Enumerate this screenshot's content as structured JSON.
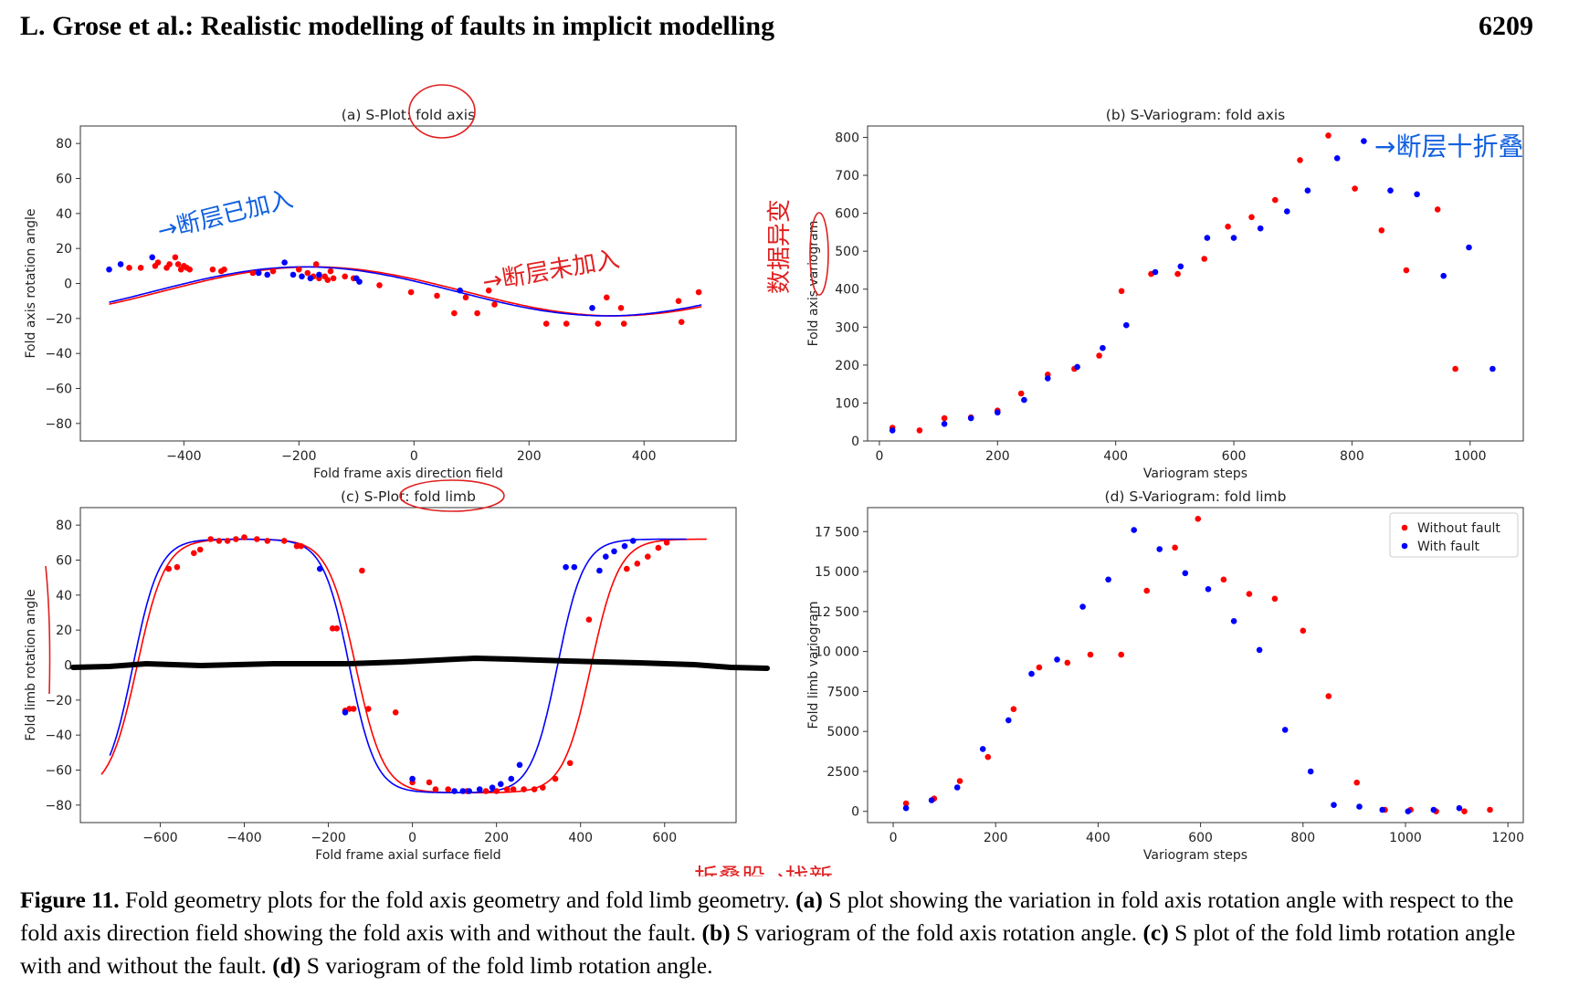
{
  "header": {
    "left": "L. Grose et al.: Realistic modelling of faults in implicit modelling",
    "right": "6209"
  },
  "caption": {
    "label": "Figure 11.",
    "intro": " Fold geometry plots for the fold axis geometry and fold limb geometry. ",
    "a_label": "(a)",
    "a_text": " S plot showing the variation in fold axis rotation angle with respect to the fold axis direction field showing the fold axis with and without the fault. ",
    "b_label": "(b)",
    "b_text": " S variogram of the fold axis rotation angle. ",
    "c_label": "(c)",
    "c_text": " S plot of the fold limb rotation angle with and without the fault. ",
    "d_label": "(d)",
    "d_text": " S variogram of the fold limb rotation angle."
  },
  "annotations": {
    "a_fault_added": "→断层已加入",
    "a_fault_not_added": "→断层未加入",
    "b_fault_annot": "→断层十折叠",
    "b_ylabel_annot": "数据异变",
    "caption_annot": "折叠股→找新"
  },
  "colors": {
    "without_fault": "#ff0000",
    "with_fault": "#0000ff",
    "ink_red": "#e02020",
    "ink_blue": "#1060e0"
  },
  "chart_data": [
    {
      "type": "scatter",
      "title": "(a) S-Plot: fold axis",
      "xlabel": "Fold frame axis direction field",
      "ylabel": "Fold axis rotation angle",
      "xlim": [
        -580,
        560
      ],
      "ylim": [
        -90,
        90
      ],
      "xticks": [
        -400,
        -200,
        0,
        200,
        400
      ],
      "yticks": [
        -80,
        -60,
        -40,
        -20,
        0,
        20,
        40,
        60,
        80
      ],
      "series": [
        {
          "name": "Without fault",
          "color": "#ff0000",
          "points": [
            [
              -495,
              9
            ],
            [
              -475,
              9
            ],
            [
              -450,
              10
            ],
            [
              -445,
              12
            ],
            [
              -430,
              9
            ],
            [
              -425,
              11
            ],
            [
              -415,
              15
            ],
            [
              -410,
              11
            ],
            [
              -405,
              8
            ],
            [
              -400,
              10
            ],
            [
              -395,
              9
            ],
            [
              -390,
              8
            ],
            [
              -350,
              8
            ],
            [
              -335,
              7
            ],
            [
              -330,
              8
            ],
            [
              -280,
              6
            ],
            [
              -245,
              7
            ],
            [
              -200,
              8
            ],
            [
              -185,
              6
            ],
            [
              -175,
              4
            ],
            [
              -170,
              11
            ],
            [
              -165,
              3
            ],
            [
              -155,
              4
            ],
            [
              -150,
              2
            ],
            [
              -145,
              7
            ],
            [
              -140,
              3
            ],
            [
              -120,
              4
            ],
            [
              -105,
              3
            ],
            [
              -60,
              -1
            ],
            [
              -5,
              -5
            ],
            [
              40,
              -7
            ],
            [
              70,
              -17
            ],
            [
              90,
              -8
            ],
            [
              110,
              -17
            ],
            [
              130,
              -4
            ],
            [
              140,
              -12
            ],
            [
              230,
              -23
            ],
            [
              265,
              -23
            ],
            [
              320,
              -23
            ],
            [
              335,
              -8
            ],
            [
              360,
              -14
            ],
            [
              365,
              -23
            ],
            [
              460,
              -10
            ],
            [
              465,
              -22
            ],
            [
              495,
              -5
            ]
          ]
        },
        {
          "name": "With fault",
          "color": "#0000ff",
          "points": [
            [
              -530,
              8
            ],
            [
              -510,
              11
            ],
            [
              -455,
              15
            ],
            [
              -270,
              6
            ],
            [
              -255,
              5
            ],
            [
              -225,
              12
            ],
            [
              -210,
              5
            ],
            [
              -195,
              4
            ],
            [
              -180,
              3
            ],
            [
              -165,
              5
            ],
            [
              -100,
              3
            ],
            [
              -95,
              1
            ],
            [
              80,
              -4
            ],
            [
              310,
              -14
            ]
          ]
        }
      ],
      "lines": [
        {
          "name": "Without fault",
          "color": "#ff0000",
          "amplitude": 14,
          "offset": -4.5,
          "center": -175,
          "wavelength": 1050
        },
        {
          "name": "With fault",
          "color": "#0000ff",
          "amplitude": 14,
          "offset": -4.5,
          "center": -190,
          "wavelength": 1050
        }
      ]
    },
    {
      "type": "scatter",
      "title": "(b) S-Variogram: fold axis",
      "xlabel": "Variogram steps",
      "ylabel": "Fold axis variogram",
      "xlim": [
        -20,
        1090
      ],
      "ylim": [
        0,
        830
      ],
      "xticks": [
        0,
        200,
        400,
        600,
        800,
        1000
      ],
      "yticks": [
        0,
        100,
        200,
        300,
        400,
        500,
        600,
        700,
        800
      ],
      "series": [
        {
          "name": "Without fault",
          "color": "#ff0000",
          "points": [
            [
              22,
              35
            ],
            [
              68,
              28
            ],
            [
              110,
              60
            ],
            [
              155,
              62
            ],
            [
              200,
              80
            ],
            [
              240,
              125
            ],
            [
              285,
              175
            ],
            [
              330,
              190
            ],
            [
              372,
              225
            ],
            [
              410,
              395
            ],
            [
              460,
              440
            ],
            [
              505,
              440
            ],
            [
              550,
              480
            ],
            [
              590,
              565
            ],
            [
              630,
              590
            ],
            [
              670,
              635
            ],
            [
              712,
              740
            ],
            [
              760,
              805
            ],
            [
              805,
              665
            ],
            [
              850,
              555
            ],
            [
              892,
              450
            ],
            [
              945,
              610
            ],
            [
              975,
              190
            ]
          ]
        },
        {
          "name": "With fault",
          "color": "#0000ff",
          "points": [
            [
              22,
              28
            ],
            [
              110,
              45
            ],
            [
              155,
              60
            ],
            [
              200,
              75
            ],
            [
              245,
              108
            ],
            [
              285,
              165
            ],
            [
              335,
              195
            ],
            [
              378,
              245
            ],
            [
              418,
              305
            ],
            [
              467,
              445
            ],
            [
              510,
              460
            ],
            [
              555,
              535
            ],
            [
              600,
              535
            ],
            [
              645,
              560
            ],
            [
              690,
              605
            ],
            [
              725,
              660
            ],
            [
              775,
              745
            ],
            [
              820,
              790
            ],
            [
              865,
              660
            ],
            [
              910,
              650
            ],
            [
              955,
              435
            ],
            [
              998,
              510
            ],
            [
              1038,
              190
            ]
          ]
        }
      ]
    },
    {
      "type": "scatter",
      "title": "(c) S-Plot: fold limb",
      "xlabel": "Fold frame axial surface field",
      "ylabel": "Fold limb rotation angle",
      "xlim": [
        -790,
        770
      ],
      "ylim": [
        -90,
        90
      ],
      "xticks": [
        -600,
        -400,
        -200,
        0,
        200,
        400,
        600
      ],
      "yticks": [
        -80,
        -60,
        -40,
        -20,
        0,
        20,
        40,
        60,
        80
      ],
      "series": [
        {
          "name": "Without fault",
          "color": "#ff0000",
          "points": [
            [
              -580,
              55
            ],
            [
              -560,
              56
            ],
            [
              -520,
              64
            ],
            [
              -505,
              66
            ],
            [
              -480,
              72
            ],
            [
              -460,
              71
            ],
            [
              -440,
              71
            ],
            [
              -420,
              72
            ],
            [
              -400,
              73
            ],
            [
              -370,
              72
            ],
            [
              -345,
              71
            ],
            [
              -305,
              71
            ],
            [
              -275,
              68
            ],
            [
              -265,
              68
            ],
            [
              -190,
              21
            ],
            [
              -180,
              21
            ],
            [
              -160,
              -26
            ],
            [
              -150,
              -25
            ],
            [
              -140,
              -25
            ],
            [
              -120,
              54
            ],
            [
              -105,
              -25
            ],
            [
              -40,
              -27
            ],
            [
              0,
              -67
            ],
            [
              40,
              -67
            ],
            [
              55,
              -71
            ],
            [
              85,
              -71
            ],
            [
              130,
              -72
            ],
            [
              175,
              -72
            ],
            [
              200,
              -72
            ],
            [
              225,
              -71
            ],
            [
              240,
              -71
            ],
            [
              265,
              -71
            ],
            [
              290,
              -71
            ],
            [
              310,
              -70
            ],
            [
              340,
              -65
            ],
            [
              375,
              -56
            ],
            [
              420,
              26
            ],
            [
              510,
              55
            ],
            [
              535,
              58
            ],
            [
              560,
              62
            ],
            [
              585,
              67
            ],
            [
              605,
              70
            ]
          ]
        },
        {
          "name": "With fault",
          "color": "#0000ff",
          "points": [
            [
              -220,
              55
            ],
            [
              -160,
              -27
            ],
            [
              0,
              -65
            ],
            [
              100,
              -72
            ],
            [
              120,
              -72
            ],
            [
              135,
              -72
            ],
            [
              160,
              -71
            ],
            [
              190,
              -70
            ],
            [
              210,
              -68
            ],
            [
              235,
              -65
            ],
            [
              255,
              -57
            ],
            [
              365,
              56
            ],
            [
              385,
              56
            ],
            [
              445,
              54
            ],
            [
              460,
              62
            ],
            [
              480,
              65
            ],
            [
              505,
              68
            ],
            [
              525,
              71
            ]
          ]
        }
      ],
      "lines": [
        {
          "name": "Without fault",
          "color": "#ff0000",
          "x0": -740,
          "x1": 700,
          "wavelength": 1520,
          "riseCenter": -655,
          "steepness": 0.03,
          "fallCenter": -135,
          "riseCenter2": 425
        },
        {
          "name": "With fault",
          "color": "#0000ff",
          "x0": -720,
          "x1": 655,
          "wavelength": 1480,
          "riseCenter": -665,
          "steepness": 0.032,
          "fallCenter": -150,
          "riseCenter2": 345
        }
      ]
    },
    {
      "type": "scatter",
      "title": "(d) S-Variogram: fold limb",
      "xlabel": "Variogram steps",
      "ylabel": "Fold limb variogram",
      "xlim": [
        -50,
        1230
      ],
      "ylim": [
        -700,
        19000
      ],
      "xticks": [
        0,
        200,
        400,
        600,
        800,
        1000,
        1200
      ],
      "yticks": [
        0,
        2500,
        5000,
        7500,
        10000,
        12500,
        15000,
        17500
      ],
      "ytick_labels": [
        "0",
        "2500",
        "5000",
        "7500",
        "10 000",
        "12 500",
        "15 000",
        "17 500"
      ],
      "legend": {
        "placement": "top-right",
        "entries": [
          "Without fault",
          "With fault"
        ]
      },
      "series": [
        {
          "name": "Without fault",
          "color": "#ff0000",
          "points": [
            [
              25,
              500
            ],
            [
              80,
              800
            ],
            [
              130,
              1900
            ],
            [
              185,
              3400
            ],
            [
              235,
              6400
            ],
            [
              285,
              9000
            ],
            [
              340,
              9300
            ],
            [
              385,
              9800
            ],
            [
              445,
              9800
            ],
            [
              495,
              13800
            ],
            [
              550,
              16500
            ],
            [
              595,
              18300
            ],
            [
              645,
              14500
            ],
            [
              695,
              13600
            ],
            [
              745,
              13300
            ],
            [
              800,
              11300
            ],
            [
              850,
              7200
            ],
            [
              905,
              1800
            ],
            [
              960,
              100
            ],
            [
              1010,
              100
            ],
            [
              1060,
              0
            ],
            [
              1115,
              0
            ],
            [
              1165,
              100
            ]
          ]
        },
        {
          "name": "With fault",
          "color": "#0000ff",
          "points": [
            [
              25,
              200
            ],
            [
              75,
              700
            ],
            [
              125,
              1500
            ],
            [
              175,
              3900
            ],
            [
              225,
              5700
            ],
            [
              270,
              8600
            ],
            [
              320,
              9500
            ],
            [
              370,
              12800
            ],
            [
              420,
              14500
            ],
            [
              470,
              17600
            ],
            [
              520,
              16400
            ],
            [
              570,
              14900
            ],
            [
              615,
              13900
            ],
            [
              665,
              11900
            ],
            [
              715,
              10100
            ],
            [
              765,
              5100
            ],
            [
              815,
              2500
            ],
            [
              860,
              400
            ],
            [
              910,
              300
            ],
            [
              955,
              100
            ],
            [
              1005,
              0
            ],
            [
              1055,
              100
            ],
            [
              1105,
              200
            ]
          ]
        }
      ]
    }
  ]
}
